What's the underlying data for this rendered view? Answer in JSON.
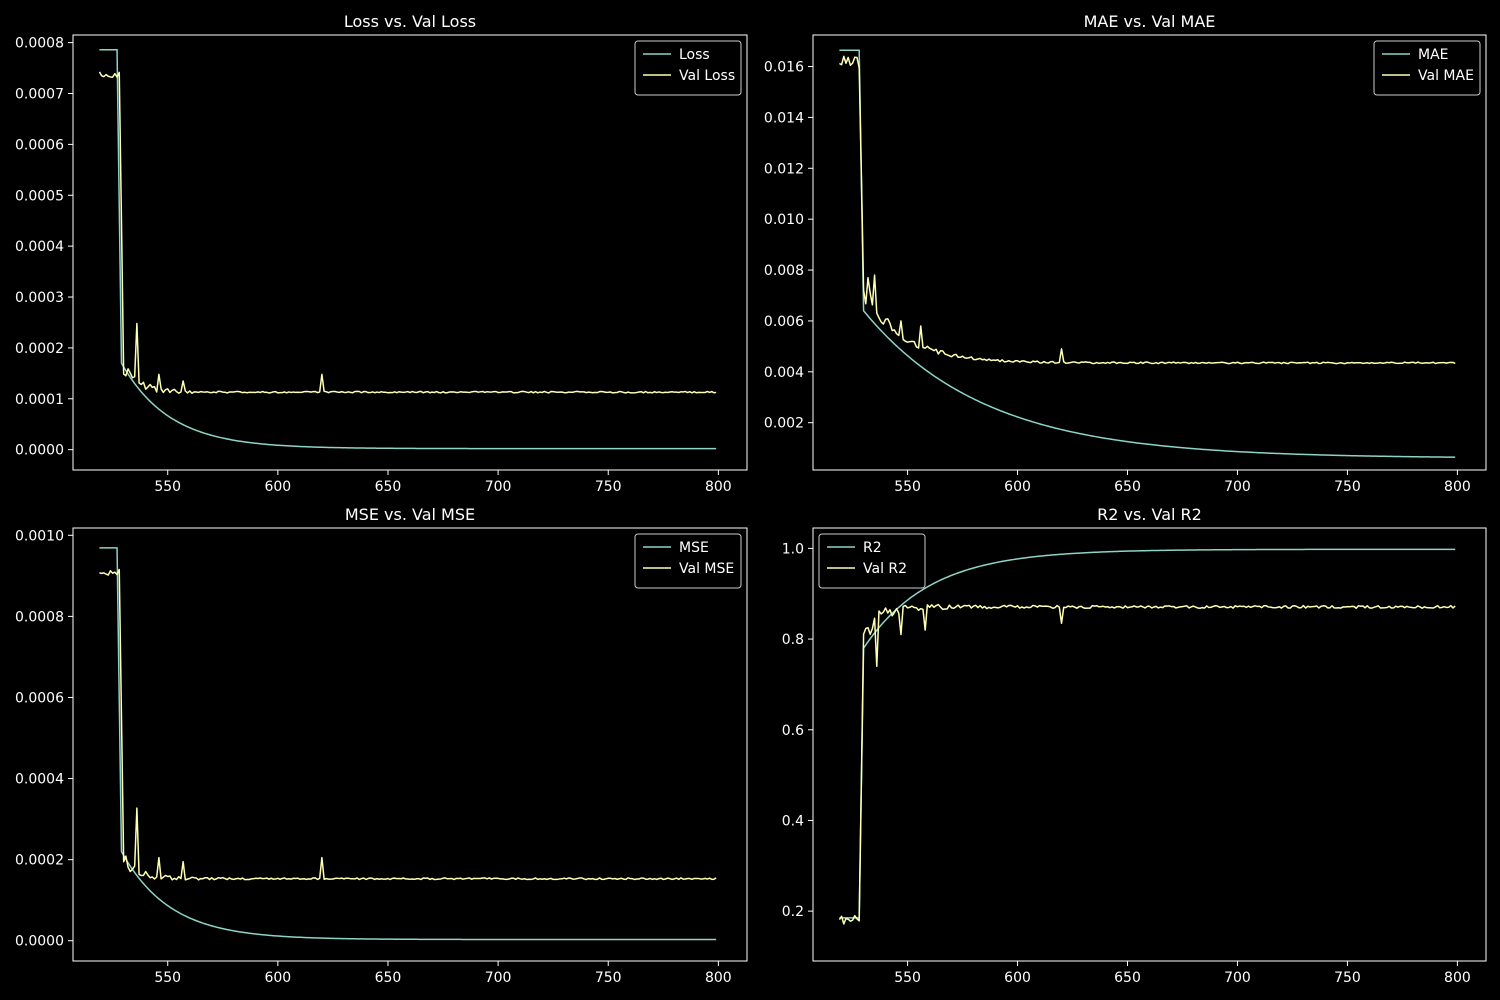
{
  "figure": {
    "background": "#000000"
  },
  "colors": {
    "train": "#8dd3c7",
    "val": "#feffb3",
    "axes": "#ffffff",
    "text": "#ffffff"
  },
  "chart_data": [
    {
      "type": "line",
      "title": "Loss vs. Val Loss",
      "xlim": [
        507,
        813
      ],
      "ylim": [
        -4e-05,
        0.000815
      ],
      "xticks": [
        550,
        600,
        650,
        700,
        750,
        800
      ],
      "yticks": [
        0,
        0.0001,
        0.0002,
        0.0003,
        0.0004,
        0.0005,
        0.0006,
        0.0007,
        0.0008
      ],
      "ytick_decimals": 4,
      "legend": "upper right",
      "series": [
        {
          "name": "Loss",
          "color": "#8dd3c7",
          "shape": "train",
          "plateau": 0.000786,
          "drop_end": 529,
          "after_drop": 0.00017,
          "final": 2e-06,
          "tau": 22,
          "noise": 0
        },
        {
          "name": "Val Loss",
          "color": "#feffb3",
          "shape": "val",
          "plateau": 0.000738,
          "plateau_noise": 6e-06,
          "drop_end": 530,
          "after_drop": 0.00016,
          "final": 0.000113,
          "tau": 7,
          "noise": 1.2e-05,
          "noise_decay": 14,
          "late_noise": 1.5e-06,
          "spikes": [
            [
              536,
              0.000248
            ],
            [
              546,
              0.000148
            ],
            [
              557,
              0.000135
            ],
            [
              620,
              0.000148
            ]
          ]
        }
      ]
    },
    {
      "type": "line",
      "title": "MAE vs. Val MAE",
      "xlim": [
        507,
        813
      ],
      "ylim": [
        0.00014,
        0.01724
      ],
      "xticks": [
        550,
        600,
        650,
        700,
        750,
        800
      ],
      "yticks": [
        0.002,
        0.004,
        0.006,
        0.008,
        0.01,
        0.012,
        0.014,
        0.016
      ],
      "ytick_decimals": 3,
      "legend": "upper right",
      "series": [
        {
          "name": "MAE",
          "color": "#8dd3c7",
          "shape": "train",
          "plateau": 0.01664,
          "drop_end": 530,
          "after_drop": 0.0064,
          "final": 0.0006,
          "tau": 55,
          "noise": 0
        },
        {
          "name": "Val MAE",
          "color": "#feffb3",
          "shape": "val",
          "plateau": 0.0162,
          "plateau_noise": 0.0003,
          "drop_end": 530,
          "after_drop": 0.0072,
          "final": 0.00435,
          "tau": 18,
          "noise": 0.0004,
          "noise_decay": 18,
          "late_noise": 3e-05,
          "spikes": [
            [
              532,
              0.0077
            ],
            [
              535,
              0.0078
            ],
            [
              547,
              0.006
            ],
            [
              556,
              0.0058
            ],
            [
              620,
              0.0049
            ]
          ]
        }
      ]
    },
    {
      "type": "line",
      "title": "MSE vs. Val MSE",
      "xlim": [
        507,
        813
      ],
      "ylim": [
        -5e-05,
        0.001018
      ],
      "xticks": [
        550,
        600,
        650,
        700,
        750,
        800
      ],
      "yticks": [
        0,
        0.0002,
        0.0004,
        0.0006,
        0.0008,
        0.001
      ],
      "ytick_decimals": 4,
      "legend": "upper right",
      "series": [
        {
          "name": "MSE",
          "color": "#8dd3c7",
          "shape": "train",
          "plateau": 0.000969,
          "drop_end": 529,
          "after_drop": 0.00022,
          "final": 3e-06,
          "tau": 22,
          "noise": 0
        },
        {
          "name": "Val MSE",
          "color": "#feffb3",
          "shape": "val",
          "plateau": 0.000908,
          "plateau_noise": 8e-06,
          "drop_end": 530,
          "after_drop": 0.0002,
          "final": 0.000153,
          "tau": 7,
          "noise": 1.4e-05,
          "noise_decay": 14,
          "late_noise": 2e-06,
          "spikes": [
            [
              536,
              0.000327
            ],
            [
              546,
              0.000205
            ],
            [
              557,
              0.000195
            ],
            [
              620,
              0.000205
            ]
          ]
        }
      ]
    },
    {
      "type": "line",
      "title": "R2 vs. Val R2",
      "xlim": [
        507,
        813
      ],
      "ylim": [
        0.09,
        1.045
      ],
      "xticks": [
        550,
        600,
        650,
        700,
        750,
        800
      ],
      "yticks": [
        0.2,
        0.4,
        0.6,
        0.8,
        1.0
      ],
      "ytick_decimals": 1,
      "legend": "upper left",
      "series": [
        {
          "name": "R2",
          "color": "#8dd3c7",
          "shape": "train",
          "plateau": 0.185,
          "drop_end": 530,
          "after_drop": 0.78,
          "final": 0.998,
          "tau": 30,
          "noise": 0
        },
        {
          "name": "Val R2",
          "color": "#feffb3",
          "shape": "val",
          "plateau": 0.18,
          "plateau_noise": 0.015,
          "drop_end": 530,
          "after_drop": 0.8,
          "final": 0.871,
          "tau": 6,
          "noise": 0.018,
          "noise_decay": 18,
          "late_noise": 0.003,
          "spikes": [
            [
              536,
              0.74
            ],
            [
              547,
              0.81
            ],
            [
              558,
              0.82
            ],
            [
              620,
              0.835
            ]
          ]
        }
      ]
    }
  ]
}
